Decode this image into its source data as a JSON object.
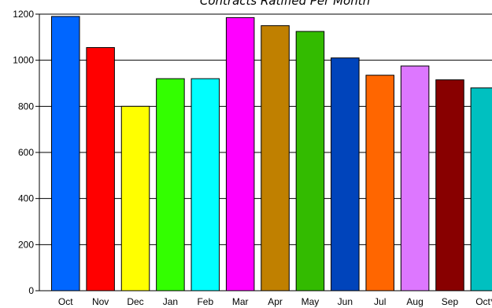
{
  "chart_data": {
    "type": "bar",
    "title": "Contracts Ratified Per Month",
    "xlabel": "",
    "ylabel": "",
    "ylim": [
      0,
      1200
    ],
    "yticks": [
      0,
      200,
      400,
      600,
      800,
      1000,
      1200
    ],
    "grid": true,
    "categories": [
      "Oct",
      "Nov",
      "Dec",
      "Jan",
      "Feb",
      "Mar",
      "Apr",
      "May",
      "Jun",
      "Jul",
      "Aug",
      "Sep",
      "Oct*"
    ],
    "values": [
      1190,
      1055,
      800,
      920,
      920,
      1185,
      1150,
      1125,
      1010,
      935,
      975,
      915,
      880
    ],
    "colors": [
      "#0066ff",
      "#ff0000",
      "#ffff00",
      "#33ff00",
      "#00ffff",
      "#ff00ff",
      "#c08000",
      "#33bb00",
      "#0044bb",
      "#ff6600",
      "#dd77ff",
      "#880000",
      "#00c0c0"
    ]
  }
}
